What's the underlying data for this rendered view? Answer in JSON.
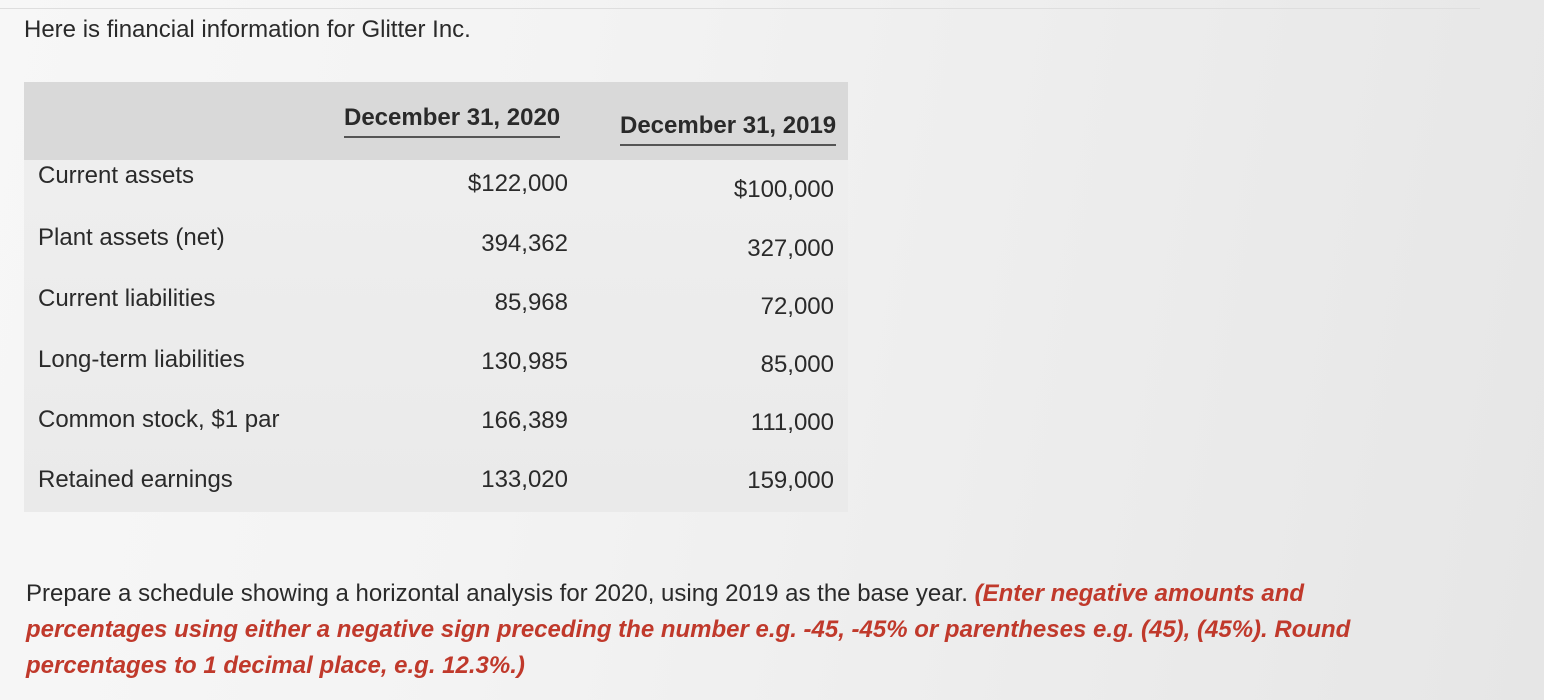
{
  "intro_text": "Here is financial information for Glitter Inc.",
  "table": {
    "headers": [
      "December 31, 2020",
      "December 31, 2019"
    ],
    "rows": [
      {
        "label": "Current assets",
        "v2020": "$122,000",
        "v2019": "$100,000"
      },
      {
        "label": "Plant assets (net)",
        "v2020": "394,362",
        "v2019": "327,000"
      },
      {
        "label": "Current liabilities",
        "v2020": "85,968",
        "v2019": "72,000"
      },
      {
        "label": "Long-term liabilities",
        "v2020": "130,985",
        "v2019": "85,000"
      },
      {
        "label": "Common stock, $1 par",
        "v2020": "166,389",
        "v2019": "111,000"
      },
      {
        "label": "Retained earnings",
        "v2020": "133,020",
        "v2019": "159,000"
      }
    ]
  },
  "instructions": {
    "main": "Prepare a schedule showing a horizontal analysis for 2020, using 2019 as the base year.",
    "note": "(Enter negative amounts and percentages using either a negative sign preceding the number e.g. -45, -45% or parentheses e.g. (45), (45%). Round percentages to 1 decimal place, e.g. 12.3%.)"
  }
}
